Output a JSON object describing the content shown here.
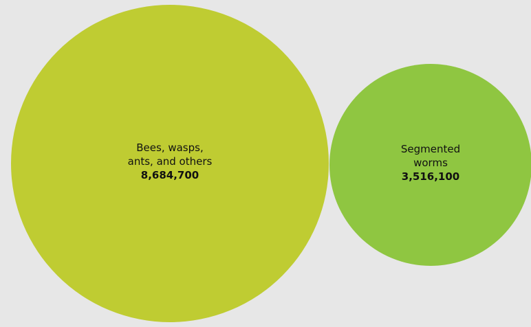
{
  "chart_data": {
    "type": "bubble",
    "background_color": "#e7e7e7",
    "bubbles": [
      {
        "label_lines": [
          "Bees, wasps,",
          "ants, and others"
        ],
        "value": 8684700,
        "value_label": "8,684,700",
        "color": "#bfcc32"
      },
      {
        "label_lines": [
          "Segmented",
          "worms"
        ],
        "value": 3516100,
        "value_label": "3,516,100",
        "color": "#8fc641"
      }
    ]
  }
}
